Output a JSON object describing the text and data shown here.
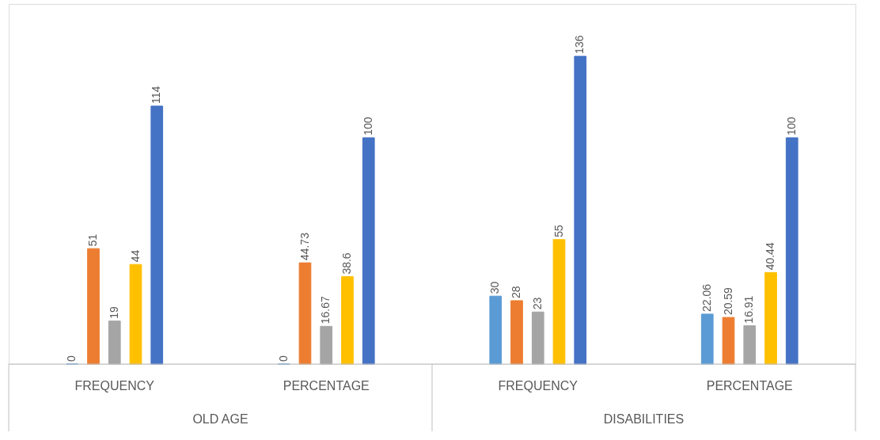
{
  "chart_data": {
    "type": "bar",
    "categories": [
      "FREQUENCY",
      "PERCENTAGE",
      "FREQUENCY",
      "PERCENTAGE"
    ],
    "series": [
      {
        "color": "#5b9bd5",
        "values": [
          0,
          0,
          30,
          22.06
        ]
      },
      {
        "color": "#ed7d31",
        "values": [
          51,
          44.73,
          28,
          20.59
        ]
      },
      {
        "color": "#a5a5a5",
        "values": [
          19,
          16.67,
          23,
          16.91
        ]
      },
      {
        "color": "#ffc000",
        "values": [
          44,
          38.6,
          55,
          40.44
        ]
      },
      {
        "color": "#4472c4",
        "values": [
          114,
          100,
          136,
          100
        ]
      }
    ],
    "annotations": [
      "OLD AGE",
      "DISABILITIES"
    ],
    "data_labels": true
  }
}
